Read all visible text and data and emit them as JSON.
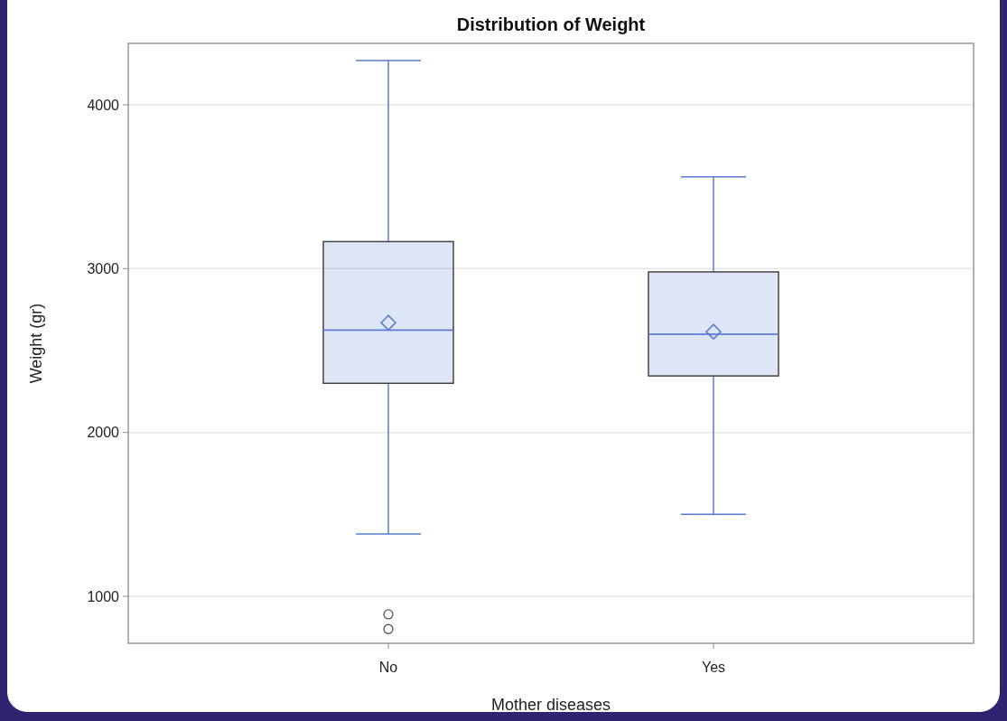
{
  "chart_data": {
    "type": "box",
    "title": "Distribution of Weight",
    "xlabel": "Mother diseases",
    "ylabel": "Weight (gr)",
    "categories": [
      "No",
      "Yes"
    ],
    "series": [
      {
        "color": "#5a7bd0",
        "boxes": [
          {
            "low": 1380,
            "q1": 2300,
            "median": 2625,
            "q3": 3165,
            "high": 4270,
            "mean": 2670,
            "outliers": [
              890,
              800
            ]
          },
          {
            "low": 1500,
            "q1": 2345,
            "median": 2600,
            "q3": 2980,
            "high": 3560,
            "mean": 2615
          }
        ]
      }
    ],
    "ylim": [
      713,
      4375
    ],
    "yticks": [
      1000,
      2000,
      3000,
      4000
    ],
    "grid": "y"
  }
}
